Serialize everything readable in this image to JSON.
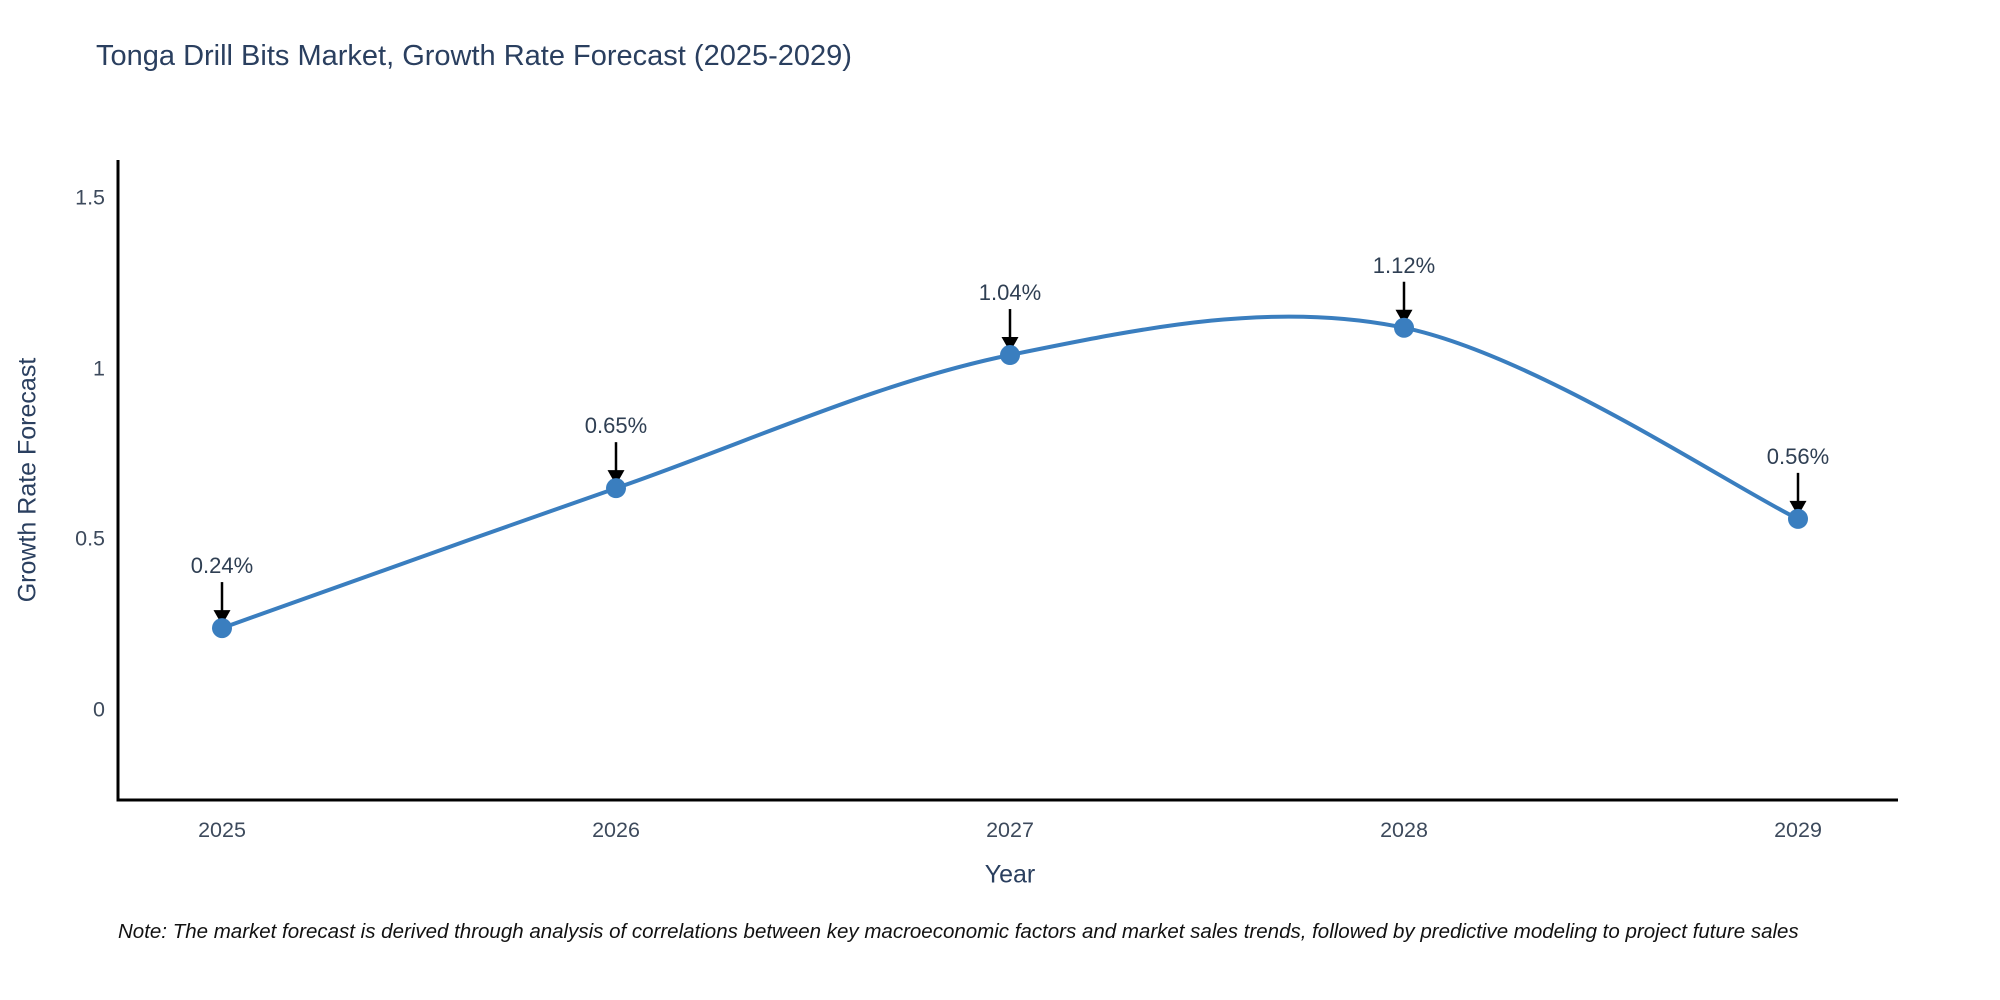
{
  "note": "Note: The market forecast is derived through analysis of correlations between key macroeconomic factors and market sales trends, followed by predictive modeling to project future sales",
  "chart_data": {
    "type": "line",
    "title": "Tonga Drill Bits Market, Growth Rate Forecast (2025-2029)",
    "xlabel": "Year",
    "ylabel": "Growth Rate Forecast",
    "x": [
      2025,
      2026,
      2027,
      2028,
      2029
    ],
    "series": [
      {
        "name": "Growth Rate Forecast",
        "values": [
          0.24,
          0.65,
          1.04,
          1.12,
          0.56
        ]
      }
    ],
    "point_labels": [
      "0.24%",
      "0.65%",
      "1.04%",
      "1.12%",
      "0.56%"
    ],
    "x_ticks": {
      "values": [
        2025,
        2026,
        2027,
        2028,
        2029
      ],
      "labels": [
        "2025",
        "2026",
        "2027",
        "2028",
        "2029"
      ]
    },
    "y_ticks": {
      "values": [
        0,
        0.5,
        1,
        1.5
      ],
      "labels": [
        "0",
        "0.5",
        "1",
        "1.5"
      ]
    },
    "ylim": [
      -0.26,
      1.61
    ],
    "curve": "spline",
    "grid": false,
    "legend": "none",
    "colors": {
      "line": "#3a7ebf",
      "marker": "#3a7ebf",
      "arrow": "#000000",
      "axis": "#000000",
      "title": "#2a3f5f",
      "tick": "#3d4a5c",
      "background": "#ffffff"
    }
  }
}
